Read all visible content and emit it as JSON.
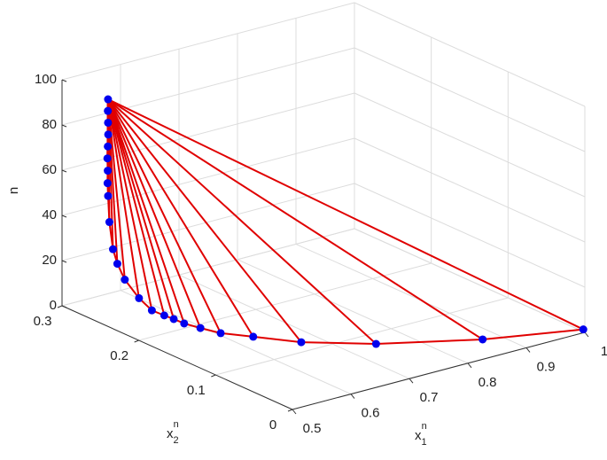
{
  "chart_data": {
    "type": "line3d",
    "xlabel": {
      "base": "x",
      "sub": "1",
      "sup": "n"
    },
    "ylabel": {
      "base": "x",
      "sub": "2",
      "sup": "n"
    },
    "zlabel": "n",
    "x1": [
      1.0,
      0.862,
      0.731,
      0.649,
      0.605,
      0.573,
      0.558,
      0.546,
      0.54,
      0.533,
      0.521,
      0.52,
      0.522,
      0.525,
      0.528,
      0.535,
      0.542,
      0.545,
      0.548,
      0.55,
      0.552,
      0.554,
      0.555,
      0.556,
      0.557
    ],
    "x2": [
      0.002,
      0.028,
      0.067,
      0.102,
      0.131,
      0.149,
      0.164,
      0.176,
      0.185,
      0.192,
      0.199,
      0.215,
      0.235,
      0.247,
      0.255,
      0.265,
      0.272,
      0.275,
      0.277,
      0.279,
      0.28,
      0.281,
      0.282,
      0.283,
      0.2835
    ],
    "n": [
      1,
      2,
      3,
      4,
      5,
      6,
      7,
      8,
      9,
      10,
      12,
      15,
      20,
      25,
      30,
      40,
      50,
      55,
      60,
      65,
      70,
      75,
      80,
      85,
      90
    ],
    "line_color": "#e00000",
    "marker_color": "#0000ee",
    "xlim": [
      0.5,
      1
    ],
    "xticks": [
      0.5,
      0.6,
      0.7,
      0.8,
      0.9,
      1
    ],
    "ylim": [
      0,
      0.3
    ],
    "yticks": [
      0,
      0.1,
      0.2,
      0.3
    ],
    "zlim": [
      0,
      100
    ],
    "zticks": [
      0,
      20,
      40,
      60,
      80,
      100
    ],
    "grid": true
  }
}
